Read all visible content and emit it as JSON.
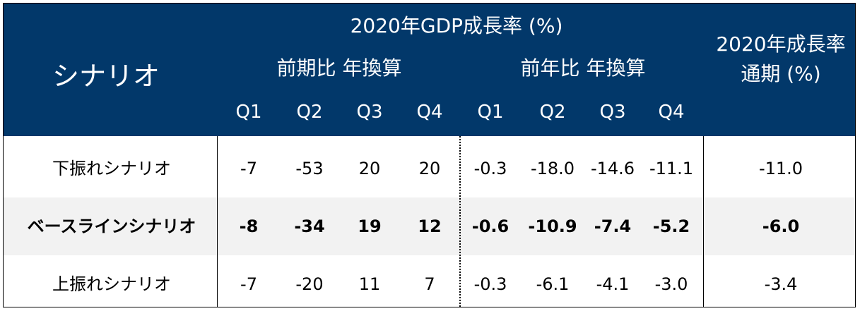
{
  "header": {
    "gdp_title": "2020年GDP成長率 (%)",
    "scenario_label": "シナリオ",
    "qoq_label": "前期比 年換算",
    "yoy_label": "前年比 年換算",
    "annual_title_line1": "2020年成長率",
    "annual_title_line2": "通期 (%)",
    "quarters": [
      "Q1",
      "Q2",
      "Q3",
      "Q4",
      "Q1",
      "Q2",
      "Q3",
      "Q4"
    ]
  },
  "rows": [
    {
      "name": "下振れシナリオ",
      "qoq": [
        "-7",
        "-53",
        "20",
        "20"
      ],
      "yoy": [
        "-0.3",
        "-18.0",
        "-14.6",
        "-11.1"
      ],
      "annual": "-11.0"
    },
    {
      "name": "ベースラインシナリオ",
      "qoq": [
        "-8",
        "-34",
        "19",
        "12"
      ],
      "yoy": [
        "-0.6",
        "-10.9",
        "-7.4",
        "-5.2"
      ],
      "annual": "-6.0"
    },
    {
      "name": "上振れシナリオ",
      "qoq": [
        "-7",
        "-20",
        "11",
        "7"
      ],
      "yoy": [
        "-0.3",
        "-6.1",
        "-4.1",
        "-3.0"
      ],
      "annual": "-3.4"
    }
  ],
  "colors": {
    "header_bg": "#02386a",
    "header_text": "#ffffff",
    "alt_row_bg": "#f2f2f2"
  }
}
